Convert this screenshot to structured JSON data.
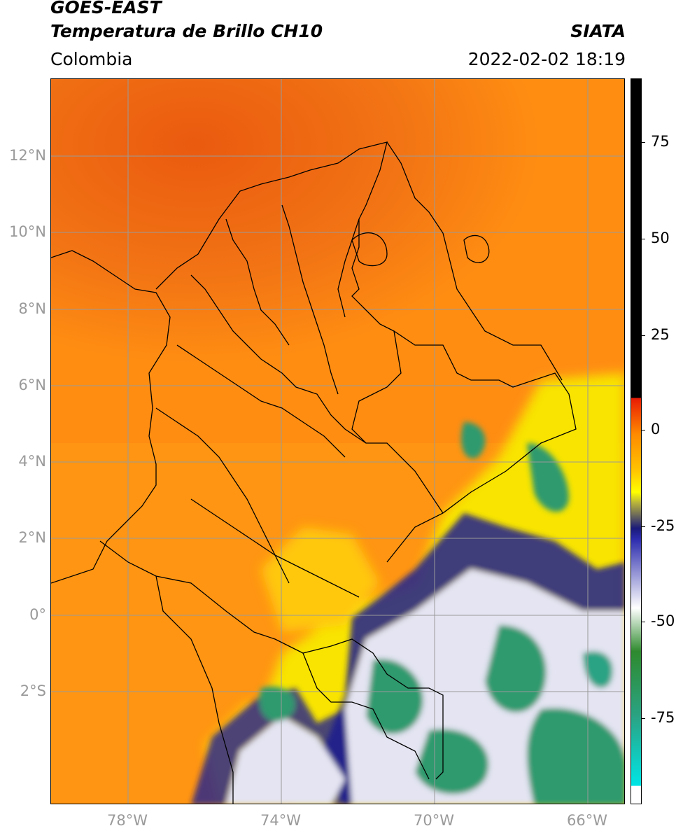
{
  "header": {
    "title_line1": "GOES-EAST",
    "title_line2": "Temperatura de Brillo CH10",
    "region": "Colombia",
    "organization": "SIATA",
    "timestamp": "2022-02-02 18:19"
  },
  "axes": {
    "lat_ticks": [
      "12°N",
      "10°N",
      "8°N",
      "6°N",
      "4°N",
      "2°N",
      "0°",
      "2°S"
    ],
    "lon_ticks": [
      "78°W",
      "74°W",
      "70°W",
      "66°W"
    ]
  },
  "colorbar": {
    "ticks": [
      "75",
      "50",
      "25",
      "0",
      "-25",
      "-50",
      "-75"
    ],
    "colors": {
      "warm": "#ff8a00",
      "hot": "#e81a05",
      "mid": "#ffff00",
      "cold_blue": "#1a1a7a",
      "cold_white": "#ffffff",
      "cold_green": "#2aa384",
      "coldest": "#00e5e5",
      "saturated": "#000000"
    }
  },
  "map": {
    "colors": {
      "ocean_warm": "#f36a10",
      "land_orange": "#ff9a0e",
      "yellow": "#f7e700",
      "storm_blue": "#1f1f8f",
      "storm_white": "#e8e8f4",
      "storm_green": "#2e9a6e",
      "gridline": "#9a9a9a",
      "border": "#000000"
    }
  }
}
